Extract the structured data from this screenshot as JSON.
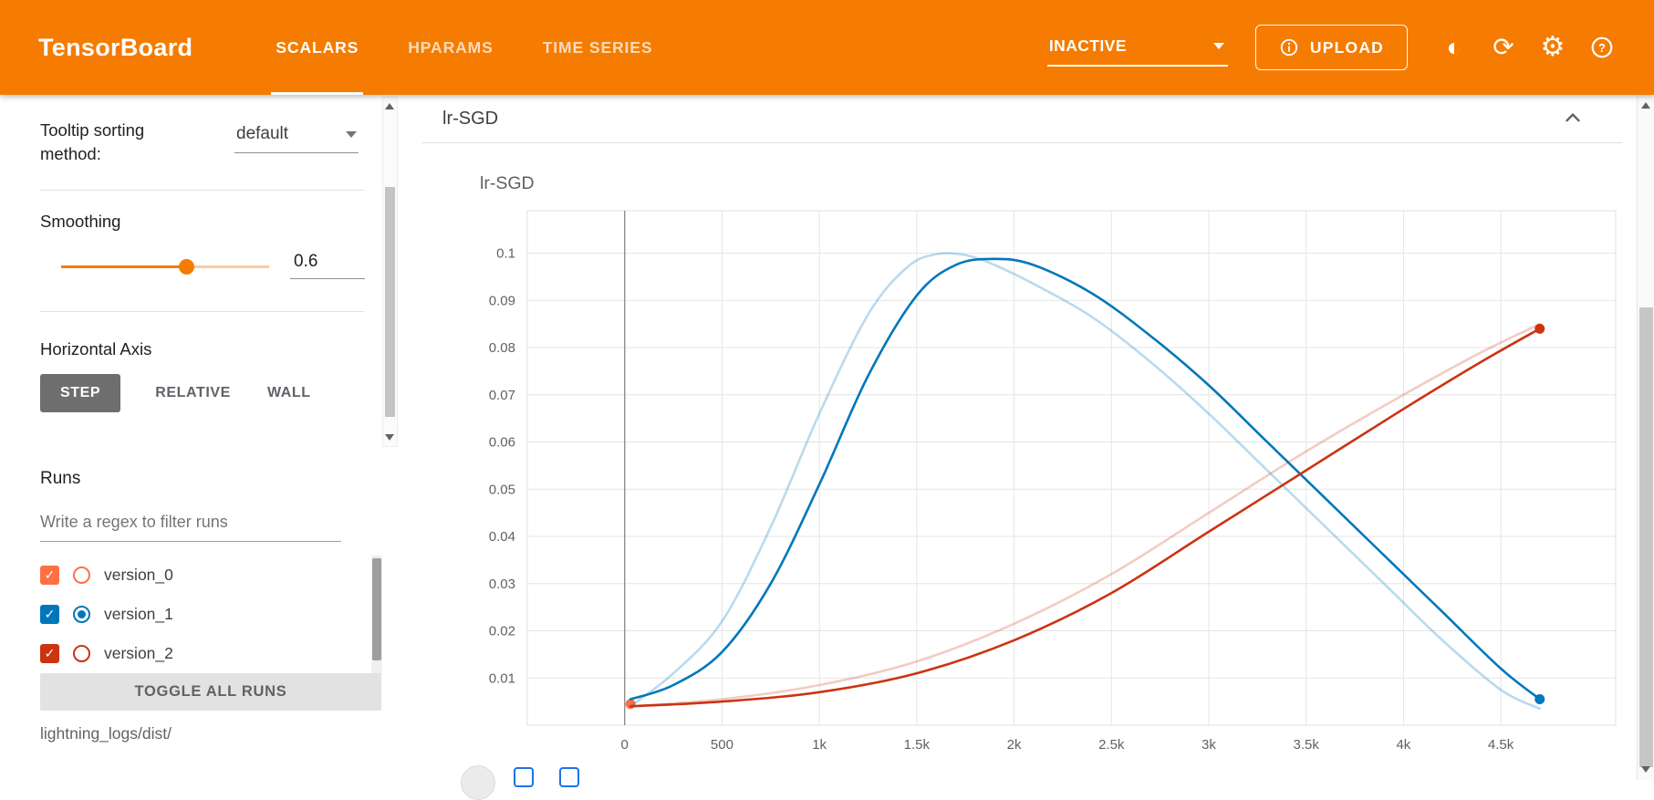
{
  "header": {
    "brand": "TensorBoard",
    "tabs": [
      {
        "label": "SCALARS",
        "active": true
      },
      {
        "label": "HPARAMS",
        "active": false
      },
      {
        "label": "TIME SERIES",
        "active": false
      }
    ],
    "status_dropdown": "INACTIVE",
    "upload_label": "UPLOAD"
  },
  "icons": {
    "contrast": "◐",
    "refresh": "⟳",
    "settings": "⚙",
    "check": "✓"
  },
  "sidebar": {
    "tooltip_sorting": {
      "label": "Tooltip sorting method:",
      "value": "default"
    },
    "smoothing": {
      "label": "Smoothing",
      "value": "0.6",
      "fraction": 0.6
    },
    "horizontal_axis": {
      "label": "Horizontal Axis",
      "options": [
        {
          "label": "STEP",
          "active": true
        },
        {
          "label": "RELATIVE",
          "active": false
        },
        {
          "label": "WALL",
          "active": false
        }
      ]
    },
    "runs": {
      "title": "Runs",
      "filter_placeholder": "Write a regex to filter runs",
      "items": [
        {
          "label": "version_0",
          "color": "#ff7043",
          "checked": true,
          "radio_selected": false
        },
        {
          "label": "version_1",
          "color": "#0077bb",
          "checked": true,
          "radio_selected": true
        },
        {
          "label": "version_2",
          "color": "#cc3311",
          "checked": true,
          "radio_selected": false
        }
      ],
      "toggle_all_label": "TOGGLE ALL RUNS",
      "logdir": "lightning_logs/dist/"
    }
  },
  "main": {
    "card_title": "lr-SGD"
  },
  "chart_data": {
    "type": "line",
    "title": "lr-SGD",
    "xlim": [
      -500,
      5090
    ],
    "ylim": [
      0,
      0.109
    ],
    "grid": true,
    "legend": "none",
    "zero_line_x": 0,
    "x_ticks": [
      {
        "v": 0,
        "label": "0"
      },
      {
        "v": 500,
        "label": "500"
      },
      {
        "v": 1000,
        "label": "1k"
      },
      {
        "v": 1500,
        "label": "1.5k"
      },
      {
        "v": 2000,
        "label": "2k"
      },
      {
        "v": 2500,
        "label": "2.5k"
      },
      {
        "v": 3000,
        "label": "3k"
      },
      {
        "v": 3500,
        "label": "3.5k"
      },
      {
        "v": 4000,
        "label": "4k"
      },
      {
        "v": 4500,
        "label": "4.5k"
      }
    ],
    "y_ticks": [
      {
        "v": 0.01,
        "label": "0.01"
      },
      {
        "v": 0.02,
        "label": "0.02"
      },
      {
        "v": 0.03,
        "label": "0.03"
      },
      {
        "v": 0.04,
        "label": "0.04"
      },
      {
        "v": 0.05,
        "label": "0.05"
      },
      {
        "v": 0.06,
        "label": "0.06"
      },
      {
        "v": 0.07,
        "label": "0.07"
      },
      {
        "v": 0.08,
        "label": "0.08"
      },
      {
        "v": 0.09,
        "label": "0.09"
      },
      {
        "v": 0.1,
        "label": "0.1"
      }
    ],
    "series": [
      {
        "name": "version_0",
        "color": "#ff7043",
        "opacity": 1,
        "width": 2.6,
        "marker": "start",
        "points": [
          [
            30,
            0.0045
          ]
        ]
      },
      {
        "name": "version_1 original",
        "color": "#0077bb",
        "opacity": 0.27,
        "width": 2.6,
        "points": [
          [
            30,
            0.004
          ],
          [
            250,
            0.011
          ],
          [
            500,
            0.022
          ],
          [
            750,
            0.042
          ],
          [
            1000,
            0.066
          ],
          [
            1250,
            0.087
          ],
          [
            1450,
            0.097
          ],
          [
            1600,
            0.0998
          ],
          [
            1750,
            0.0996
          ],
          [
            1900,
            0.0975
          ],
          [
            2100,
            0.0935
          ],
          [
            2400,
            0.0865
          ],
          [
            2700,
            0.077
          ],
          [
            3000,
            0.066
          ],
          [
            3300,
            0.054
          ],
          [
            3600,
            0.042
          ],
          [
            3900,
            0.03
          ],
          [
            4200,
            0.018
          ],
          [
            4500,
            0.0075
          ],
          [
            4700,
            0.0035
          ]
        ]
      },
      {
        "name": "version_1 smoothed",
        "color": "#0077bb",
        "opacity": 1,
        "width": 2.6,
        "marker": "end",
        "points": [
          [
            30,
            0.0055
          ],
          [
            250,
            0.0085
          ],
          [
            500,
            0.0155
          ],
          [
            750,
            0.03
          ],
          [
            1000,
            0.051
          ],
          [
            1250,
            0.074
          ],
          [
            1500,
            0.091
          ],
          [
            1700,
            0.0975
          ],
          [
            1900,
            0.0988
          ],
          [
            2100,
            0.0975
          ],
          [
            2400,
            0.0915
          ],
          [
            2700,
            0.0825
          ],
          [
            3000,
            0.072
          ],
          [
            3300,
            0.06
          ],
          [
            3600,
            0.048
          ],
          [
            3900,
            0.036
          ],
          [
            4200,
            0.024
          ],
          [
            4500,
            0.012
          ],
          [
            4700,
            0.0055
          ]
        ]
      },
      {
        "name": "version_2 original",
        "color": "#cc3311",
        "opacity": 0.25,
        "width": 2.6,
        "points": [
          [
            30,
            0.004
          ],
          [
            500,
            0.0055
          ],
          [
            1000,
            0.0085
          ],
          [
            1500,
            0.0135
          ],
          [
            2000,
            0.0215
          ],
          [
            2500,
            0.032
          ],
          [
            3000,
            0.045
          ],
          [
            3500,
            0.058
          ],
          [
            4000,
            0.07
          ],
          [
            4400,
            0.079
          ],
          [
            4700,
            0.085
          ]
        ]
      },
      {
        "name": "version_2 smoothed",
        "color": "#cc3311",
        "opacity": 1,
        "width": 2.6,
        "marker": "end",
        "points": [
          [
            30,
            0.004
          ],
          [
            500,
            0.005
          ],
          [
            1000,
            0.007
          ],
          [
            1500,
            0.011
          ],
          [
            2000,
            0.018
          ],
          [
            2500,
            0.028
          ],
          [
            3000,
            0.041
          ],
          [
            3500,
            0.054
          ],
          [
            4000,
            0.067
          ],
          [
            4400,
            0.077
          ],
          [
            4700,
            0.084
          ]
        ]
      }
    ]
  }
}
